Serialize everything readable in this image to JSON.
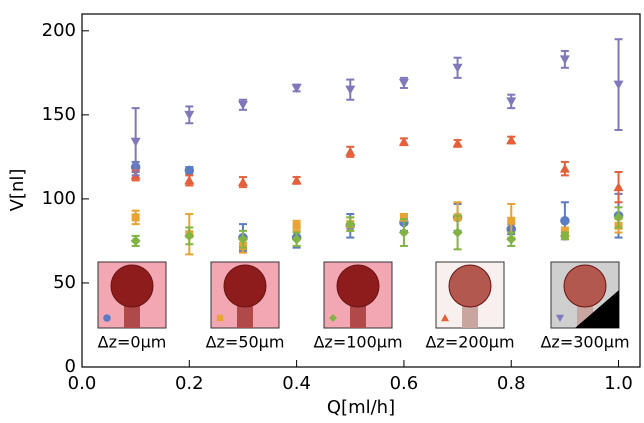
{
  "chart_data": {
    "type": "scatter",
    "xlabel": "Q[ml/h]",
    "ylabel": "V[nl]",
    "x": [
      0.1,
      0.2,
      0.3,
      0.4,
      0.5,
      0.6,
      0.7,
      0.8,
      0.9,
      1.0
    ],
    "xlim": [
      0,
      1.04
    ],
    "ylim": [
      0,
      210
    ],
    "xticks": [
      {
        "value": 0,
        "label": "0.0"
      },
      0.2,
      0.4,
      0.6,
      0.8,
      {
        "value": 1,
        "label": "1.0"
      }
    ],
    "yticks": [
      0,
      50,
      100,
      150,
      200
    ],
    "grid": false,
    "series": [
      {
        "name": "Δz=0μm",
        "color": "#5b7cc2",
        "marker": "o",
        "values": [
          119,
          117,
          77,
          77,
          84,
          86,
          89,
          82,
          87,
          90
        ],
        "errors": [
          3,
          2,
          8,
          6,
          7,
          5,
          8,
          3,
          11,
          13
        ]
      },
      {
        "name": "Δz=50μm",
        "color": "#e8a333",
        "marker": "s",
        "values": [
          89,
          79,
          72,
          84,
          85,
          89,
          89,
          87,
          80,
          84
        ],
        "errors": [
          4,
          12,
          4,
          3,
          4,
          2,
          9,
          10,
          3,
          4
        ]
      },
      {
        "name": "Δz=100μm",
        "color": "#82b444",
        "marker": "D",
        "values": [
          75,
          78,
          76,
          76,
          85,
          80,
          80,
          76,
          78,
          89
        ],
        "errors": [
          3,
          5,
          5,
          4,
          4,
          8,
          10,
          4,
          2,
          6
        ]
      },
      {
        "name": "Δz=200μm",
        "color": "#e5603a",
        "marker": "^",
        "values": [
          114,
          111,
          110,
          111,
          128,
          134,
          133,
          135,
          118,
          107
        ],
        "errors": [
          3,
          3,
          3,
          2,
          3,
          2,
          2,
          2,
          4,
          9
        ]
      },
      {
        "name": "Δz=300μm",
        "color": "#7f78bb",
        "marker": "v",
        "values": [
          134,
          150,
          156,
          166,
          165,
          169,
          178,
          158,
          183,
          168
        ],
        "errors": [
          20,
          5,
          3,
          2,
          6,
          3,
          6,
          4,
          5,
          27
        ]
      }
    ]
  }
}
